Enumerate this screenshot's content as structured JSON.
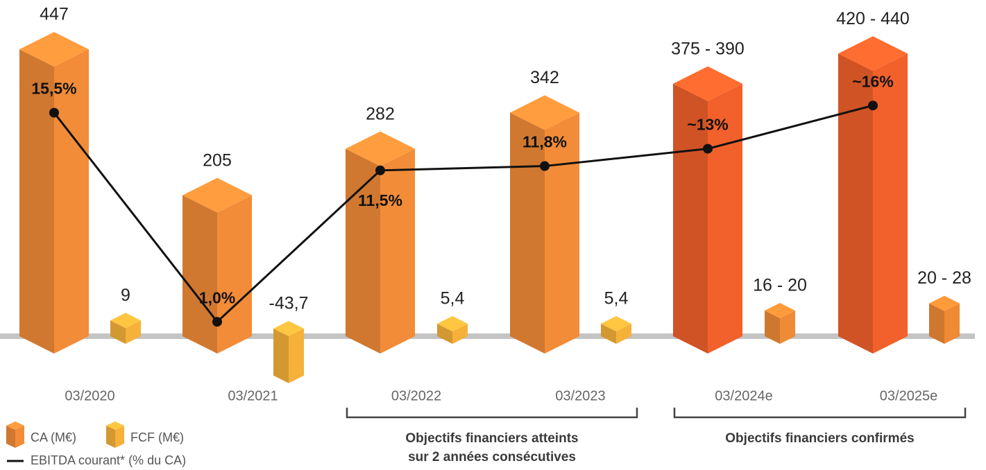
{
  "chart_data": {
    "type": "bar",
    "categories": [
      "03/2020",
      "03/2021",
      "03/2022",
      "03/2023",
      "03/2024e",
      "03/2025e"
    ],
    "series": [
      {
        "name": "CA (M€)",
        "color": "#f28c38",
        "colors": [
          "#f28c38",
          "#f28c38",
          "#f28c38",
          "#f28c38",
          "#f2612b",
          "#f2612b"
        ],
        "values": [
          447,
          205,
          282,
          342,
          [
            375,
            390
          ],
          [
            420,
            440
          ]
        ],
        "value_labels": [
          "447",
          "205",
          "282",
          "342",
          "375 - 390",
          "420 - 440"
        ]
      },
      {
        "name": "FCF (M€)",
        "color": "#f5b13a",
        "colors": [
          "#f5b13a",
          "#f5b13a",
          "#f5b13a",
          "#f5b13a",
          "#ef8a35",
          "#ef8a35"
        ],
        "values": [
          9,
          -43.7,
          5.4,
          5.4,
          [
            16,
            20
          ],
          [
            20,
            28
          ]
        ],
        "value_labels": [
          "9",
          "-43,7",
          "5,4",
          "5,4",
          "16 - 20",
          "20 - 28"
        ]
      },
      {
        "name": "EBITDA courant* (% du CA)",
        "type": "line",
        "color": "#111111",
        "values": [
          15.5,
          1.0,
          11.5,
          11.8,
          13,
          16
        ],
        "value_labels": [
          "15,5%",
          "1,0%",
          "11,5%",
          "11,8%",
          "~13%",
          "~16%"
        ]
      }
    ],
    "annotations": [
      {
        "text": [
          "Objectifs financiers atteints",
          "sur 2 années consécutives"
        ],
        "from": "03/2022",
        "to": "03/2023"
      },
      {
        "text": [
          "Objectifs financiers confirmés"
        ],
        "from": "03/2024e",
        "to": "03/2025e"
      }
    ]
  }
}
